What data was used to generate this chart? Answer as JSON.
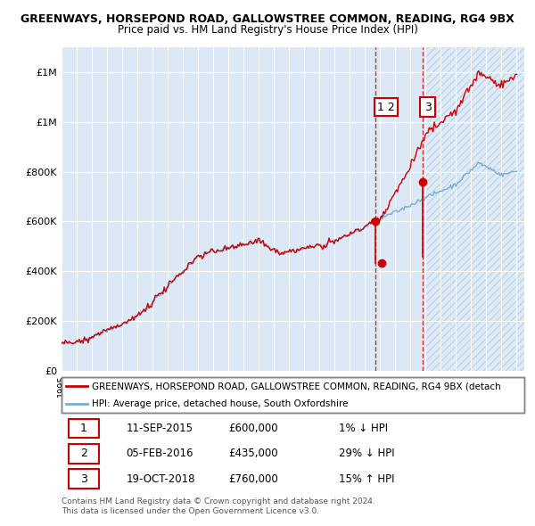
{
  "title1": "GREENWAYS, HORSEPOND ROAD, GALLOWSTREE COMMON, READING, RG4 9BX",
  "title2": "Price paid vs. HM Land Registry's House Price Index (HPI)",
  "legend_label_red": "GREENWAYS, HORSEPOND ROAD, GALLOWSTREE COMMON, READING, RG4 9BX (detach",
  "legend_label_blue": "HPI: Average price, detached house, South Oxfordshire",
  "footer1": "Contains HM Land Registry data © Crown copyright and database right 2024.",
  "footer2": "This data is licensed under the Open Government Licence v3.0.",
  "transactions": [
    {
      "num": "1",
      "date": "11-SEP-2015",
      "price": "£600,000",
      "hpi": "1% ↓ HPI",
      "year": 2015.7,
      "price_val": 600000
    },
    {
      "num": "2",
      "date": "05-FEB-2016",
      "price": "£435,000",
      "hpi": "29% ↓ HPI",
      "year": 2016.1,
      "price_val": 435000
    },
    {
      "num": "3",
      "date": "19-OCT-2018",
      "price": "£760,000",
      "hpi": "15% ↑ HPI",
      "year": 2018.8,
      "price_val": 760000
    }
  ],
  "plot_bg_main": "#dce8f5",
  "plot_bg_hatch": "#e8f0f8",
  "red_color": "#cc0000",
  "blue_color": "#7aacce",
  "vline_color": "#cc0000",
  "ylim": [
    0,
    1300000
  ],
  "xlim_start": 1995.0,
  "xlim_end": 2025.5,
  "hatch_start": 2019.0,
  "yticks": [
    0,
    200000,
    400000,
    600000,
    800000,
    1000000,
    1200000
  ]
}
